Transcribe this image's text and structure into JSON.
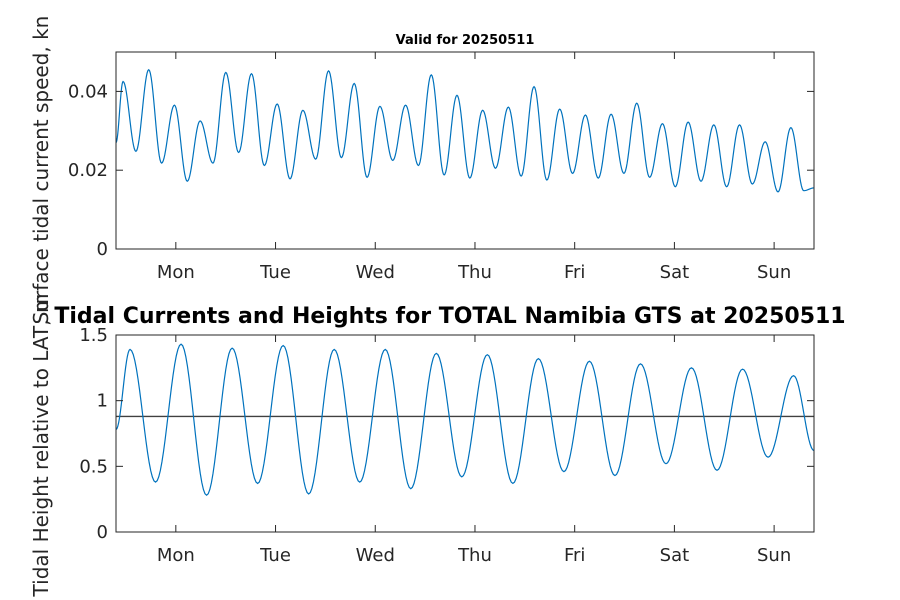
{
  "chart_data": [
    {
      "type": "line",
      "title": "Valid for 20250511",
      "ylabel": "Surface tidal current speed, kn",
      "xlabel": "",
      "xlim": [
        0,
        7
      ],
      "ylim": [
        0,
        0.05
      ],
      "yticks": [
        0,
        0.02,
        0.04
      ],
      "ytick_labels": [
        "0",
        "0.02",
        "0.04"
      ],
      "xticks": [
        0.6,
        1.6,
        2.6,
        3.6,
        4.6,
        5.6,
        6.6
      ],
      "xtick_labels": [
        "Mon",
        "Tue",
        "Wed",
        "Thu",
        "Fri",
        "Sat",
        "Sun"
      ],
      "grid": false,
      "series": [
        {
          "color": "#0072BD",
          "peaks": [
            0.0425,
            0.0455,
            0.0365,
            0.0325,
            0.0448,
            0.0445,
            0.0368,
            0.0352,
            0.0452,
            0.042,
            0.0362,
            0.0365,
            0.0442,
            0.039,
            0.0352,
            0.036,
            0.0412,
            0.0355,
            0.034,
            0.0342,
            0.037,
            0.0318,
            0.0322,
            0.0315,
            0.0315,
            0.0272,
            0.0308
          ],
          "troughs": [
            0.0248,
            0.0218,
            0.0172,
            0.0218,
            0.0245,
            0.0212,
            0.0178,
            0.0228,
            0.0232,
            0.0182,
            0.0225,
            0.0212,
            0.0188,
            0.018,
            0.0205,
            0.0185,
            0.0175,
            0.0192,
            0.018,
            0.0192,
            0.0182,
            0.0158,
            0.0172,
            0.0158,
            0.0165,
            0.0145,
            0.0148
          ],
          "start_value": 0.027,
          "end_value": 0.0155
        }
      ]
    },
    {
      "type": "line",
      "title": "Tidal Currents and Heights for TOTAL Namibia GTS at 20250511",
      "ylabel": "Tidal Height relative to LAT, m",
      "xlabel": "",
      "xlim": [
        0,
        7
      ],
      "ylim": [
        0,
        1.5
      ],
      "yticks": [
        0,
        0.5,
        1,
        1.5
      ],
      "ytick_labels": [
        "0",
        "0.5",
        "1",
        "1.5"
      ],
      "xticks": [
        0.6,
        1.6,
        2.6,
        3.6,
        4.6,
        5.6,
        6.6
      ],
      "xtick_labels": [
        "Mon",
        "Tue",
        "Wed",
        "Thu",
        "Fri",
        "Sat",
        "Sun"
      ],
      "grid": false,
      "reference_line": {
        "y": 0.88,
        "color": "#404040"
      },
      "series": [
        {
          "color": "#0072BD",
          "peaks": [
            1.39,
            1.43,
            1.4,
            1.42,
            1.39,
            1.39,
            1.36,
            1.35,
            1.32,
            1.3,
            1.28,
            1.25,
            1.24,
            1.19
          ],
          "troughs": [
            0.38,
            0.28,
            0.37,
            0.29,
            0.38,
            0.33,
            0.42,
            0.37,
            0.46,
            0.43,
            0.52,
            0.47,
            0.57
          ],
          "start_value": 0.78,
          "end_value": 0.62
        }
      ]
    }
  ]
}
